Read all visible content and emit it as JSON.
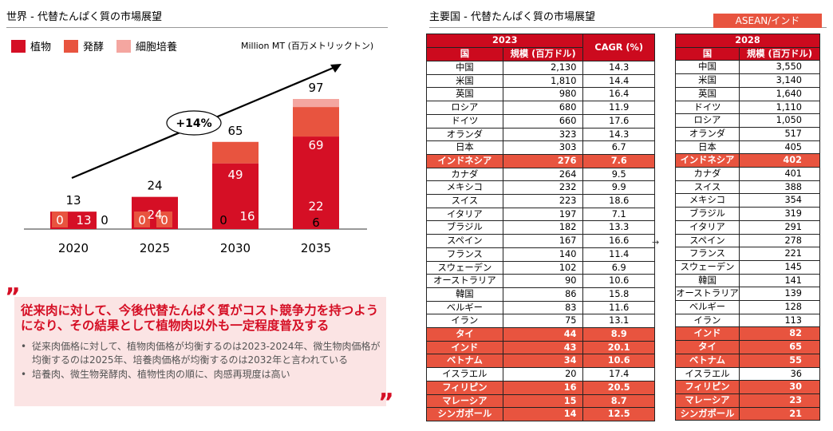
{
  "left": {
    "title": "世界 - 代替たんぱく質の市場展望",
    "unit": "Million MT (百万メトリックトン)",
    "legend": [
      {
        "label": "植物",
        "color": "#d50f25"
      },
      {
        "label": "発酵",
        "color": "#e8543f"
      },
      {
        "label": "細胞培養",
        "color": "#f4a6a0"
      }
    ],
    "cagr_label": "+14%"
  },
  "chart_data": {
    "type": "bar",
    "stacked": true,
    "categories": [
      "2020",
      "2025",
      "2030",
      "2035"
    ],
    "series": [
      {
        "name": "植物",
        "color": "#d50f25",
        "values": [
          13,
          24,
          49,
          69
        ]
      },
      {
        "name": "発酵",
        "color": "#e8543f",
        "values": [
          0,
          0,
          16,
          22
        ]
      },
      {
        "name": "細胞培養",
        "color": "#f4a6a0",
        "values": [
          0,
          0,
          0,
          6
        ]
      }
    ],
    "totals": [
      13,
      24,
      65,
      97
    ],
    "title": "",
    "xlabel": "",
    "ylabel": "Million MT (百万メトリックトン)",
    "ylim": [
      0,
      97
    ],
    "grid": false,
    "legend_position": "top-left"
  },
  "callout": {
    "headline": "従来肉に対して、今後代替たんぱく質がコスト競争力を持つようになり、その結果として植物肉以外も一定程度普及する",
    "bullets": [
      "従来肉価格に対して、植物肉価格が均衡するのは2023-2024年、微生物肉価格が均衡するのは2025年、培養肉価格が均衡するのは2032年と言われている",
      "培養肉、微生物発酵肉、植物性肉の順に、肉感再現度は高い"
    ]
  },
  "right": {
    "title": "主要国 - 代替たんぱく質の市場展望",
    "badge": "ASEAN/インド",
    "table2023": {
      "year": "2023",
      "col_country": "国",
      "col_size": "規模 (百万ドル)",
      "col_cagr": "CAGR (%)",
      "rows": [
        {
          "country": "中国",
          "size": "2,130",
          "cagr": "14.3",
          "hl": false
        },
        {
          "country": "米国",
          "size": "1,810",
          "cagr": "14.4",
          "hl": false
        },
        {
          "country": "英国",
          "size": "980",
          "cagr": "16.4",
          "hl": false
        },
        {
          "country": "ロシア",
          "size": "680",
          "cagr": "11.9",
          "hl": false
        },
        {
          "country": "ドイツ",
          "size": "660",
          "cagr": "17.6",
          "hl": false
        },
        {
          "country": "オランダ",
          "size": "323",
          "cagr": "14.3",
          "hl": false
        },
        {
          "country": "日本",
          "size": "303",
          "cagr": "6.7",
          "hl": false
        },
        {
          "country": "インドネシア",
          "size": "276",
          "cagr": "7.6",
          "hl": true
        },
        {
          "country": "カナダ",
          "size": "264",
          "cagr": "9.5",
          "hl": false
        },
        {
          "country": "メキシコ",
          "size": "232",
          "cagr": "9.9",
          "hl": false
        },
        {
          "country": "スイス",
          "size": "223",
          "cagr": "18.6",
          "hl": false
        },
        {
          "country": "イタリア",
          "size": "197",
          "cagr": "7.1",
          "hl": false
        },
        {
          "country": "ブラジル",
          "size": "182",
          "cagr": "13.3",
          "hl": false
        },
        {
          "country": "スペイン",
          "size": "167",
          "cagr": "16.6",
          "hl": false
        },
        {
          "country": "フランス",
          "size": "140",
          "cagr": "11.4",
          "hl": false
        },
        {
          "country": "スウェーデン",
          "size": "102",
          "cagr": "6.9",
          "hl": false
        },
        {
          "country": "オーストラリア",
          "size": "90",
          "cagr": "10.6",
          "hl": false
        },
        {
          "country": "韓国",
          "size": "86",
          "cagr": "15.8",
          "hl": false
        },
        {
          "country": "ベルギー",
          "size": "83",
          "cagr": "11.6",
          "hl": false
        },
        {
          "country": "イラン",
          "size": "75",
          "cagr": "13.1",
          "hl": false
        },
        {
          "country": "タイ",
          "size": "44",
          "cagr": "8.9",
          "hl": true
        },
        {
          "country": "インド",
          "size": "43",
          "cagr": "20.1",
          "hl": true
        },
        {
          "country": "ベトナム",
          "size": "34",
          "cagr": "10.6",
          "hl": true
        },
        {
          "country": "イスラエル",
          "size": "20",
          "cagr": "17.4",
          "hl": false
        },
        {
          "country": "フィリピン",
          "size": "16",
          "cagr": "20.5",
          "hl": true
        },
        {
          "country": "マレーシア",
          "size": "15",
          "cagr": "8.7",
          "hl": true
        },
        {
          "country": "シンガポール",
          "size": "14",
          "cagr": "12.5",
          "hl": true
        }
      ]
    },
    "arrow": "→",
    "table2028": {
      "year": "2028",
      "col_country": "国",
      "col_size": "規模 (百万ドル)",
      "rows": [
        {
          "country": "中国",
          "size": "3,550",
          "hl": false
        },
        {
          "country": "米国",
          "size": "3,140",
          "hl": false
        },
        {
          "country": "英国",
          "size": "1,640",
          "hl": false
        },
        {
          "country": "ドイツ",
          "size": "1,110",
          "hl": false
        },
        {
          "country": "ロシア",
          "size": "1,050",
          "hl": false
        },
        {
          "country": "オランダ",
          "size": "517",
          "hl": false
        },
        {
          "country": "日本",
          "size": "405",
          "hl": false
        },
        {
          "country": "インドネシア",
          "size": "402",
          "hl": true
        },
        {
          "country": "カナダ",
          "size": "401",
          "hl": false
        },
        {
          "country": "スイス",
          "size": "388",
          "hl": false
        },
        {
          "country": "メキシコ",
          "size": "354",
          "hl": false
        },
        {
          "country": "ブラジル",
          "size": "319",
          "hl": false
        },
        {
          "country": "イタリア",
          "size": "291",
          "hl": false
        },
        {
          "country": "スペイン",
          "size": "278",
          "hl": false
        },
        {
          "country": "フランス",
          "size": "221",
          "hl": false
        },
        {
          "country": "スウェーデン",
          "size": "145",
          "hl": false
        },
        {
          "country": "韓国",
          "size": "141",
          "hl": false
        },
        {
          "country": "オーストラリア",
          "size": "139",
          "hl": false
        },
        {
          "country": "ベルギー",
          "size": "128",
          "hl": false
        },
        {
          "country": "イラン",
          "size": "113",
          "hl": false
        },
        {
          "country": "インド",
          "size": "82",
          "hl": true
        },
        {
          "country": "タイ",
          "size": "65",
          "hl": true
        },
        {
          "country": "ベトナム",
          "size": "55",
          "hl": true
        },
        {
          "country": "イスラエル",
          "size": "36",
          "hl": false
        },
        {
          "country": "フィリピン",
          "size": "30",
          "hl": true
        },
        {
          "country": "マレーシア",
          "size": "23",
          "hl": true
        },
        {
          "country": "シンガポール",
          "size": "21",
          "hl": true
        }
      ]
    }
  }
}
